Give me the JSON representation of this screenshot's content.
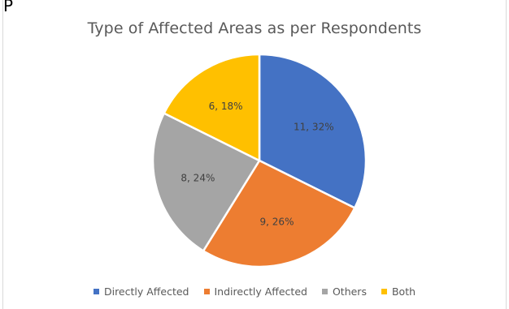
{
  "top_mark": "P",
  "chart_data": {
    "type": "pie",
    "title": "Type of Affected Areas as per Respondents",
    "categories": [
      "Directly Affected",
      "Indirectly Affected",
      "Others",
      "Both"
    ],
    "values": [
      11,
      9,
      8,
      6
    ],
    "percent_labels": [
      "32%",
      "26%",
      "24%",
      "18%"
    ],
    "data_labels": [
      "11, 32%",
      "9, 26%",
      "8, 24%",
      "6, 18%"
    ],
    "colors": [
      "#4472c4",
      "#ed7d31",
      "#a5a5a5",
      "#ffc000"
    ],
    "legend_position": "bottom"
  }
}
